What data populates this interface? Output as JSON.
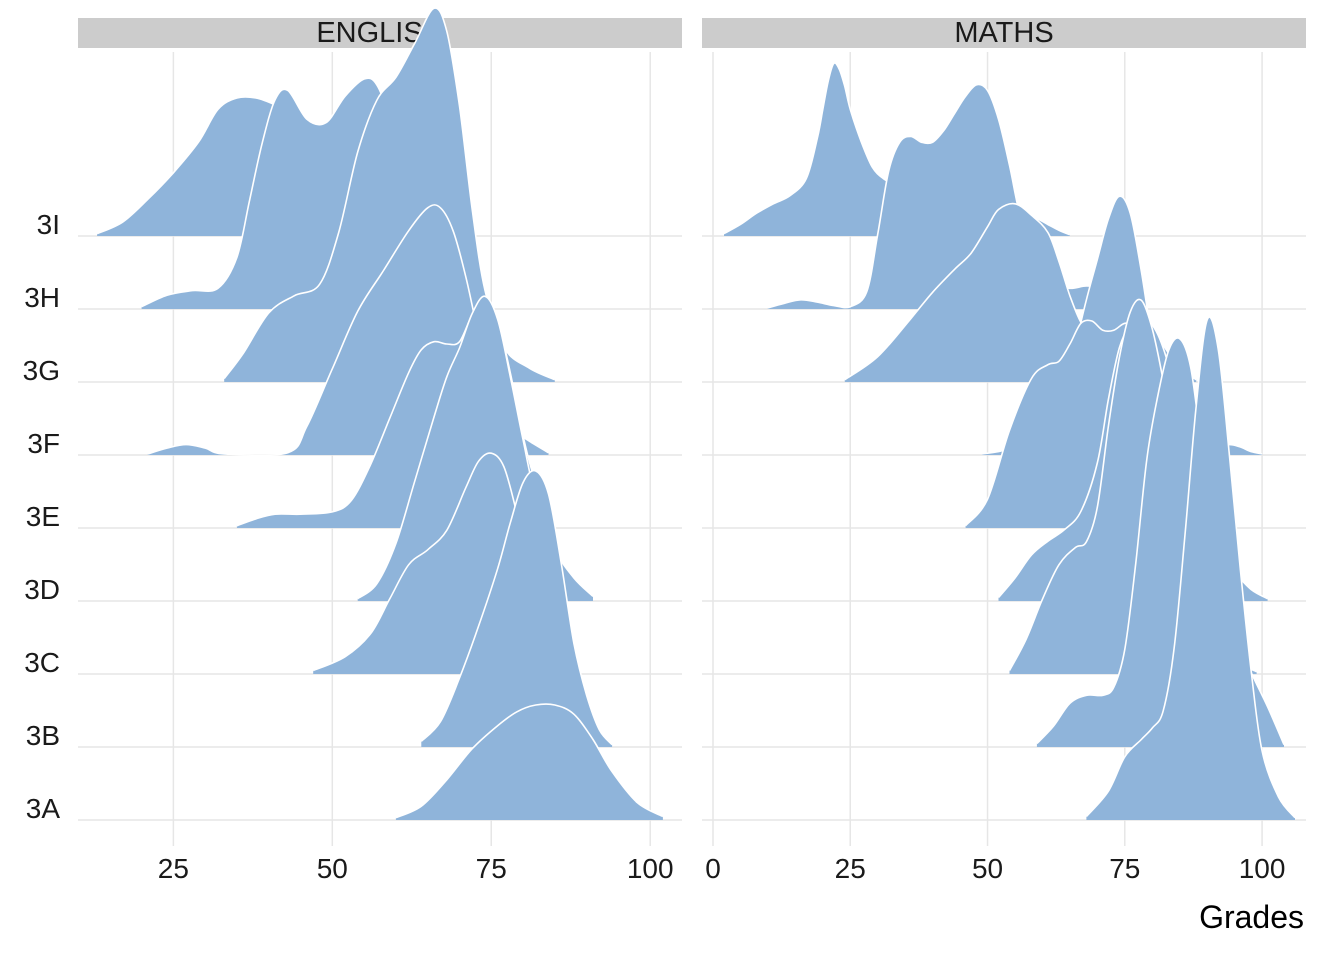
{
  "chart_data": {
    "type": "ridgeline",
    "title": "",
    "xlabel": "Grades",
    "ylabel": "",
    "fill_color": "#8fb4da",
    "outline_color": "#ffffff",
    "strip_color": "#cccccc",
    "grid_color": "#e6e6e6",
    "categories": [
      "3A",
      "3B",
      "3C",
      "3D",
      "3E",
      "3F",
      "3G",
      "3H",
      "3I"
    ],
    "panels": [
      {
        "name": "ENGLISH",
        "xlim": [
          10,
          105
        ],
        "x_ticks": [
          25,
          50,
          75,
          100
        ],
        "tick_labels": [
          "25",
          "50",
          "75",
          "100"
        ],
        "series": [
          {
            "name": "3A",
            "x": [
              60,
              64,
              68,
              72,
              76,
              79,
              82,
              85,
              88,
              91,
              94,
              98,
              102
            ],
            "density": [
              0.02,
              0.12,
              0.35,
              0.62,
              0.82,
              0.94,
              1.0,
              1.0,
              0.92,
              0.7,
              0.42,
              0.15,
              0.03
            ]
          },
          {
            "name": "3B",
            "x": [
              64,
              67,
              70,
              73,
              76,
              78,
              80,
              82,
              84,
              86,
              88,
              90,
              92,
              94
            ],
            "density": [
              0.05,
              0.22,
              0.6,
              1.05,
              1.55,
              1.95,
              2.3,
              2.4,
              2.2,
              1.6,
              0.9,
              0.45,
              0.15,
              0.02
            ]
          },
          {
            "name": "3C",
            "x": [
              47,
              52,
              56,
              59,
              62,
              65,
              68,
              71,
              73,
              75,
              77,
              79,
              81,
              83,
              85
            ],
            "density": [
              0.03,
              0.15,
              0.35,
              0.65,
              0.95,
              1.08,
              1.25,
              1.62,
              1.85,
              1.92,
              1.8,
              1.4,
              0.9,
              0.4,
              0.1
            ]
          },
          {
            "name": "3D",
            "x": [
              54,
              57,
              60,
              63,
              66,
              68,
              70,
              72,
              74,
              76,
              78,
              80,
              82,
              85,
              88,
              91
            ],
            "density": [
              0.02,
              0.15,
              0.5,
              1.05,
              1.6,
              1.95,
              2.2,
              2.5,
              2.65,
              2.45,
              1.95,
              1.4,
              0.9,
              0.45,
              0.2,
              0.04
            ]
          },
          {
            "name": "3E",
            "x": [
              35,
              38,
              41,
              45,
              50,
              53,
              56,
              59,
              62,
              64,
              66,
              68,
              70,
              72,
              74,
              76,
              78,
              80,
              82,
              85
            ],
            "density": [
              0.02,
              0.08,
              0.12,
              0.12,
              0.14,
              0.24,
              0.55,
              0.95,
              1.35,
              1.55,
              1.62,
              1.6,
              1.62,
              1.85,
              1.95,
              1.8,
              1.35,
              0.8,
              0.4,
              0.06
            ]
          },
          {
            "name": "3F",
            "x": [
              21,
              24,
              27,
              30,
              33,
              43,
              46,
              50,
              54,
              58,
              62,
              65,
              67,
              69,
              71,
              73,
              75,
              77,
              79,
              81,
              84
            ],
            "density": [
              0.01,
              0.06,
              0.09,
              0.06,
              0.01,
              0.02,
              0.25,
              0.75,
              1.25,
              1.6,
              1.95,
              2.15,
              2.15,
              1.95,
              1.55,
              1.05,
              0.65,
              0.35,
              0.2,
              0.12,
              0.02
            ]
          },
          {
            "name": "3G",
            "x": [
              33,
              36,
              40,
              44,
              48,
              51,
              54,
              57,
              60,
              63,
              66,
              68,
              70,
              72,
              74,
              77,
              81,
              85
            ],
            "density": [
              0.03,
              0.25,
              0.6,
              0.75,
              0.85,
              1.3,
              2.0,
              2.45,
              2.65,
              2.95,
              3.25,
              3.05,
              2.4,
              1.5,
              0.8,
              0.3,
              0.12,
              0.02
            ]
          },
          {
            "name": "3H",
            "x": [
              20,
              24,
              28,
              32,
              35,
              37,
              39,
              41,
              43,
              46,
              49,
              52,
              55,
              57,
              59,
              61,
              63,
              65,
              67,
              69,
              71,
              73,
              75
            ],
            "density": [
              0.02,
              0.12,
              0.16,
              0.18,
              0.45,
              0.95,
              1.45,
              1.82,
              1.9,
              1.65,
              1.62,
              1.85,
              2.0,
              1.95,
              1.65,
              1.15,
              0.7,
              0.45,
              0.3,
              0.18,
              0.1,
              0.05,
              0.02
            ]
          },
          {
            "name": "3I",
            "x": [
              13,
              17,
              21,
              25,
              29,
              32,
              35,
              38,
              41,
              44,
              47,
              50,
              52,
              54,
              56,
              58,
              60,
              62
            ],
            "density": [
              0.02,
              0.12,
              0.32,
              0.55,
              0.82,
              1.1,
              1.2,
              1.2,
              1.14,
              1.05,
              0.95,
              0.82,
              0.62,
              0.42,
              0.25,
              0.12,
              0.05,
              0.01
            ]
          }
        ]
      },
      {
        "name": "MATHS",
        "xlim": [
          -2,
          108
        ],
        "x_ticks": [
          0,
          25,
          50,
          75,
          100
        ],
        "tick_labels": [
          "0",
          "25",
          "50",
          "75",
          "100"
        ],
        "series": [
          {
            "name": "3A",
            "x": [
              68,
              72,
              75,
              78,
              80,
              82,
              84,
              86,
              88,
              90,
              92,
              94,
              96,
              98,
              100,
              103,
              106
            ],
            "density": [
              0.03,
              0.25,
              0.55,
              0.7,
              0.8,
              0.95,
              1.5,
              2.5,
              3.6,
              4.35,
              4.1,
              3.2,
              2.2,
              1.3,
              0.6,
              0.2,
              0.02
            ]
          },
          {
            "name": "3B",
            "x": [
              59,
              62,
              65,
              68,
              71,
              73,
              75,
              77,
              79,
              81,
              83,
              85,
              87,
              89,
              92,
              95,
              98,
              101,
              104
            ],
            "density": [
              0.03,
              0.18,
              0.38,
              0.45,
              0.45,
              0.52,
              0.85,
              1.6,
              2.5,
              3.05,
              3.45,
              3.55,
              3.3,
              2.6,
              1.6,
              1.0,
              0.65,
              0.35,
              0.02
            ]
          },
          {
            "name": "3C",
            "x": [
              54,
              57,
              60,
              63,
              66,
              68,
              70,
              72,
              74,
              76,
              78,
              80,
              82,
              84,
              86,
              88,
              90,
              93,
              96,
              99
            ],
            "density": [
              0.03,
              0.3,
              0.65,
              0.95,
              1.1,
              1.15,
              1.45,
              2.15,
              2.75,
              3.15,
              3.25,
              3.0,
              2.55,
              2.0,
              1.45,
              0.95,
              0.6,
              0.3,
              0.1,
              0.02
            ]
          },
          {
            "name": "3D",
            "x": [
              52,
              55,
              58,
              61,
              64,
              67,
              70,
              72,
              74,
              76,
              78,
              80,
              82,
              84,
              86,
              88,
              90,
              92,
              95,
              98,
              101
            ],
            "density": [
              0.03,
              0.2,
              0.4,
              0.52,
              0.62,
              0.78,
              1.2,
              1.75,
              2.2,
              2.4,
              2.45,
              2.4,
              2.2,
              1.85,
              1.4,
              0.95,
              0.6,
              0.42,
              0.25,
              0.1,
              0.02
            ]
          },
          {
            "name": "3E",
            "x": [
              46,
              50,
              54,
              58,
              61,
              63,
              65,
              67,
              69,
              71,
              73,
              75,
              77,
              79,
              81,
              83,
              85,
              88,
              91,
              95
            ],
            "density": [
              0.02,
              0.25,
              0.85,
              1.3,
              1.42,
              1.45,
              1.6,
              1.78,
              1.8,
              1.72,
              1.72,
              1.78,
              1.75,
              1.55,
              1.25,
              0.92,
              0.6,
              0.3,
              0.12,
              0.02
            ]
          },
          {
            "name": "3F",
            "x": [
              49,
              52,
              55,
              58,
              61,
              64,
              66,
              68,
              70,
              72,
              74,
              76,
              78,
              80,
              82,
              85,
              88,
              91,
              94,
              96,
              98,
              100
            ],
            "density": [
              0.01,
              0.03,
              0.07,
              0.1,
              0.22,
              0.55,
              0.95,
              1.35,
              1.7,
              2.05,
              2.25,
              2.1,
              1.6,
              1.0,
              0.55,
              0.2,
              0.08,
              0.06,
              0.09,
              0.07,
              0.03,
              0.01
            ]
          },
          {
            "name": "3G",
            "x": [
              24,
              30,
              36,
              40,
              44,
              47,
              50,
              52,
              55,
              58,
              61,
              63,
              65,
              67,
              69,
              71,
              73,
              75,
              77,
              79,
              81,
              83,
              85,
              88
            ],
            "density": [
              0.02,
              0.22,
              0.55,
              0.78,
              0.98,
              1.12,
              1.35,
              1.5,
              1.55,
              1.45,
              1.3,
              1.05,
              0.75,
              0.52,
              0.42,
              0.4,
              0.38,
              0.35,
              0.38,
              0.42,
              0.38,
              0.25,
              0.12,
              0.02
            ]
          },
          {
            "name": "3H",
            "x": [
              10,
              13,
              16,
              19,
              22,
              25,
              28,
              30,
              32,
              34,
              36,
              38,
              40,
              42,
              44,
              46,
              48,
              50,
              52,
              54,
              56,
              59,
              62,
              65,
              68,
              71,
              74,
              77
            ],
            "density": [
              0.01,
              0.05,
              0.08,
              0.06,
              0.03,
              0.02,
              0.15,
              0.65,
              1.2,
              1.45,
              1.5,
              1.45,
              1.45,
              1.55,
              1.7,
              1.85,
              1.95,
              1.9,
              1.65,
              1.25,
              0.8,
              0.4,
              0.22,
              0.18,
              0.2,
              0.18,
              0.08,
              0.01
            ]
          },
          {
            "name": "3I",
            "x": [
              2,
              5,
              8,
              11,
              14,
              17,
              19,
              20,
              21,
              22,
              23,
              24,
              25,
              27,
              29,
              31,
              33,
              35,
              37,
              39,
              41,
              43,
              45,
              47,
              49,
              51,
              53,
              55,
              57,
              59,
              61,
              63,
              65
            ],
            "density": [
              0.02,
              0.1,
              0.2,
              0.28,
              0.35,
              0.5,
              0.85,
              1.1,
              1.35,
              1.5,
              1.45,
              1.3,
              1.1,
              0.82,
              0.6,
              0.5,
              0.45,
              0.42,
              0.4,
              0.35,
              0.28,
              0.2,
              0.13,
              0.08,
              0.06,
              0.06,
              0.08,
              0.14,
              0.17,
              0.15,
              0.1,
              0.05,
              0.01
            ]
          }
        ]
      }
    ]
  }
}
